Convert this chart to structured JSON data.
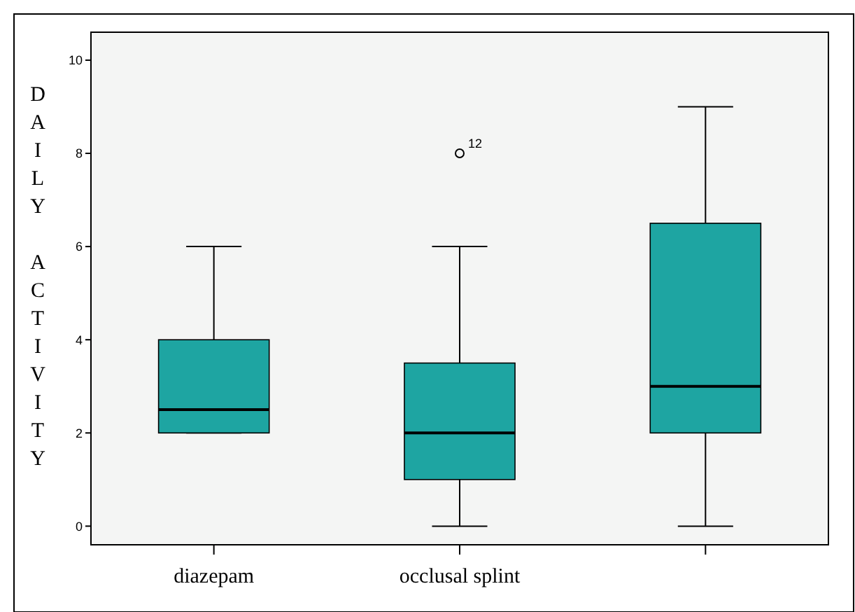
{
  "chart_data": {
    "type": "box",
    "ylabel": "DAILY ACTIVITY",
    "categories": [
      "diazepam",
      "occlusal splint",
      null
    ],
    "series": [
      {
        "color": "#1ea5a2",
        "boxes": [
          {
            "low": 2,
            "q1": 2,
            "median": 2.5,
            "q3": 4,
            "high": 6
          },
          {
            "low": 0,
            "q1": 1,
            "median": 2,
            "q3": 3.5,
            "high": 6,
            "outliers": [
              8
            ]
          },
          {
            "low": 0,
            "q1": 2,
            "median": 3,
            "q3": 6.5,
            "high": 9
          }
        ]
      }
    ],
    "ylim": [
      -0.4,
      10.6
    ],
    "yticks": [
      0,
      2,
      4,
      6,
      8,
      10
    ],
    "annotations": [
      "12"
    ]
  }
}
